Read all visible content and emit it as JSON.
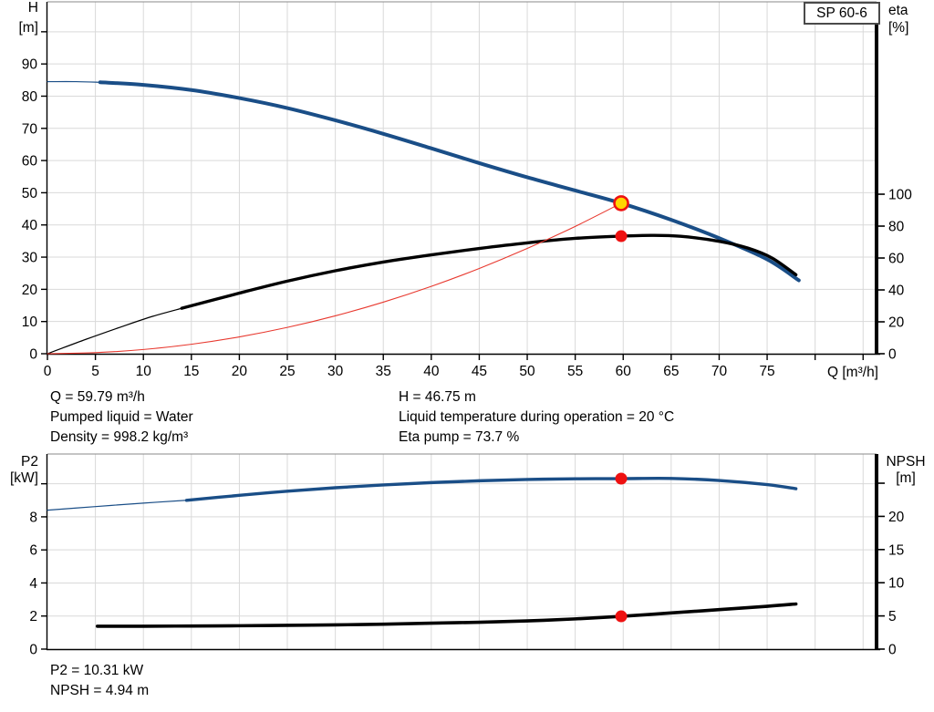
{
  "model_label": "SP 60-6",
  "colors": {
    "curve_blue": "#1a4e87",
    "curve_black": "#000000",
    "curve_red": "#e8392f",
    "marker_red": "#ee1111",
    "marker_yellow": "#ffd500",
    "grid": "#d9d9d9",
    "frame_top": "#8a8a8a",
    "axis": "#000000"
  },
  "labels": {
    "h": "H",
    "h_unit": "[m]",
    "eta": "eta",
    "eta_unit": "[%]",
    "q": "Q [m³/h]",
    "p2": "P2",
    "p2_unit": "[kW]",
    "npsh": "NPSH",
    "npsh_unit": "[m]"
  },
  "readout": {
    "q": "Q = 59.79 m³/h",
    "pumped": "Pumped liquid = Water",
    "density": "Density = 998.2 kg/m³",
    "h": "H = 46.75 m",
    "temp": "Liquid temperature during operation = 20 °C",
    "eta": "Eta pump = 73.7 %",
    "p2": "P2 = 10.31 kW",
    "npsh": "NPSH = 4.94 m"
  },
  "chart_data": [
    {
      "id": "head-chart",
      "type": "line",
      "title": "SP 60-6 pump curve (H and eta vs Q)",
      "x_axis": {
        "label": "Q [m³/h]",
        "min": 0,
        "max": 86.4,
        "tick_labels": [
          0,
          5,
          10,
          15,
          20,
          25,
          30,
          35,
          40,
          45,
          50,
          55,
          60,
          65,
          70,
          75
        ],
        "tick_marks": [
          0,
          5,
          10,
          15,
          20,
          25,
          30,
          35,
          40,
          45,
          50,
          55,
          60,
          65,
          70,
          75,
          80,
          85
        ],
        "grid": [
          5,
          10,
          15,
          20,
          25,
          30,
          35,
          40,
          45,
          50,
          55,
          60,
          65,
          70,
          75,
          80,
          85
        ]
      },
      "left_axis": {
        "label": "H [m]",
        "min": 0,
        "max": 109.3,
        "tick_labels": [
          0,
          10,
          20,
          30,
          40,
          50,
          60,
          70,
          80,
          90
        ],
        "tick_marks": [
          0,
          10,
          20,
          30,
          40,
          50,
          60,
          70,
          80,
          90,
          100
        ],
        "grid": [
          10,
          20,
          30,
          40,
          50,
          60,
          70,
          80,
          90,
          100
        ]
      },
      "right_axis": {
        "label": "eta [%]",
        "min": 0,
        "max": 220.6,
        "tick_labels": [
          0,
          20,
          40,
          60,
          80,
          100
        ],
        "tick_marks": [
          0,
          20,
          40,
          60,
          80,
          100
        ]
      },
      "series": [
        {
          "name": "H-curve-thin",
          "axis": "left",
          "color": "curve_blue",
          "width": 1.2,
          "points": [
            [
              0,
              84.5
            ],
            [
              3,
              84.5
            ],
            [
              5.5,
              84.3
            ]
          ]
        },
        {
          "name": "H-curve",
          "axis": "left",
          "color": "curve_blue",
          "width": 4,
          "points": [
            [
              5.5,
              84.3
            ],
            [
              10,
              83.5
            ],
            [
              15,
              81.9
            ],
            [
              20,
              79.4
            ],
            [
              25,
              76.3
            ],
            [
              30,
              72.5
            ],
            [
              35,
              68.3
            ],
            [
              40,
              63.8
            ],
            [
              45,
              59.2
            ],
            [
              50,
              54.8
            ],
            [
              55,
              50.7
            ],
            [
              59.79,
              46.75
            ],
            [
              65,
              41.6
            ],
            [
              70,
              35.9
            ],
            [
              75,
              29.3
            ],
            [
              78.3,
              22.8
            ]
          ]
        },
        {
          "name": "eta-curve-thin",
          "axis": "right",
          "color": "curve_black",
          "width": 1.2,
          "points": [
            [
              0,
              0
            ],
            [
              4,
              9
            ],
            [
              8,
              17.5
            ],
            [
              11,
              23.5
            ],
            [
              14,
              28.5
            ]
          ]
        },
        {
          "name": "eta-curve",
          "axis": "right",
          "color": "curve_black",
          "width": 3.4,
          "points": [
            [
              14,
              28.5
            ],
            [
              20,
              38
            ],
            [
              25,
              45.5
            ],
            [
              30,
              52
            ],
            [
              35,
              57.5
            ],
            [
              40,
              62
            ],
            [
              45,
              66
            ],
            [
              50,
              69.5
            ],
            [
              55,
              72.3
            ],
            [
              59.79,
              73.7
            ],
            [
              63,
              74.2
            ],
            [
              66,
              73.6
            ],
            [
              70,
              70.5
            ],
            [
              73,
              66.2
            ],
            [
              75.5,
              60
            ],
            [
              78,
              49.5
            ]
          ]
        },
        {
          "name": "system-curve",
          "axis": "left",
          "color": "curve_red",
          "width": 1.1,
          "points": [
            [
              0,
              0
            ],
            [
              5,
              0.33
            ],
            [
              10,
              1.31
            ],
            [
              15,
              2.94
            ],
            [
              20,
              5.23
            ],
            [
              25,
              8.17
            ],
            [
              30,
              11.77
            ],
            [
              35,
              16.02
            ],
            [
              40,
              20.92
            ],
            [
              45,
              26.48
            ],
            [
              50,
              32.69
            ],
            [
              55,
              39.55
            ],
            [
              59.79,
              46.75
            ]
          ]
        }
      ],
      "markers": [
        {
          "name": "duty-point-h",
          "axis": "left",
          "x": 59.79,
          "y": 46.75,
          "style": "yellow-ring",
          "r": 7.5
        },
        {
          "name": "duty-point-eta",
          "axis": "right",
          "x": 59.79,
          "y": 73.7,
          "style": "red-dot",
          "r": 6.5
        }
      ]
    },
    {
      "id": "power-chart",
      "type": "line",
      "title": "P2 and NPSH vs Q",
      "x_axis": {
        "label": "",
        "min": 0,
        "max": 86.4,
        "tick_labels": [],
        "tick_marks": [],
        "grid": [
          5,
          10,
          15,
          20,
          25,
          30,
          35,
          40,
          45,
          50,
          55,
          60,
          65,
          70,
          75,
          80,
          85
        ]
      },
      "left_axis": {
        "label": "P2 [kW]",
        "min": 0,
        "max": 11.8,
        "tick_labels": [
          0,
          2,
          4,
          6,
          8
        ],
        "tick_marks": [
          0,
          2,
          4,
          6,
          8,
          10
        ],
        "grid": [
          2,
          4,
          6,
          8,
          10
        ]
      },
      "right_axis": {
        "label": "NPSH [m]",
        "min": 0,
        "max": 29.4,
        "tick_labels": [
          0,
          5,
          10,
          15,
          20
        ],
        "tick_marks": [
          0,
          5,
          10,
          15,
          20,
          25
        ]
      },
      "series": [
        {
          "name": "P2-curve-thin",
          "axis": "left",
          "color": "curve_blue",
          "width": 1.2,
          "points": [
            [
              0,
              8.4
            ],
            [
              5,
              8.62
            ],
            [
              10,
              8.83
            ],
            [
              14.5,
              9.0
            ]
          ]
        },
        {
          "name": "P2-curve",
          "axis": "left",
          "color": "curve_blue",
          "width": 3.4,
          "points": [
            [
              14.5,
              9.0
            ],
            [
              20,
              9.3
            ],
            [
              25,
              9.55
            ],
            [
              30,
              9.76
            ],
            [
              35,
              9.93
            ],
            [
              40,
              10.07
            ],
            [
              45,
              10.18
            ],
            [
              50,
              10.26
            ],
            [
              55,
              10.3
            ],
            [
              59.79,
              10.31
            ],
            [
              65,
              10.32
            ],
            [
              70,
              10.2
            ],
            [
              75,
              9.95
            ],
            [
              78,
              9.7
            ]
          ]
        },
        {
          "name": "NPSH-curve",
          "axis": "right",
          "color": "curve_black",
          "width": 3.6,
          "points": [
            [
              5.2,
              3.45
            ],
            [
              10,
              3.45
            ],
            [
              15,
              3.48
            ],
            [
              20,
              3.52
            ],
            [
              25,
              3.58
            ],
            [
              30,
              3.65
            ],
            [
              35,
              3.75
            ],
            [
              40,
              3.9
            ],
            [
              45,
              4.05
            ],
            [
              50,
              4.25
            ],
            [
              55,
              4.55
            ],
            [
              59.79,
              4.94
            ],
            [
              65,
              5.45
            ],
            [
              70,
              5.95
            ],
            [
              75,
              6.45
            ],
            [
              78,
              6.8
            ]
          ]
        }
      ],
      "markers": [
        {
          "name": "duty-point-p2",
          "axis": "left",
          "x": 59.79,
          "y": 10.31,
          "style": "red-dot",
          "r": 6.5
        },
        {
          "name": "duty-point-npsh",
          "axis": "right",
          "x": 59.79,
          "y": 4.94,
          "style": "red-dot",
          "r": 6.5
        }
      ]
    }
  ]
}
